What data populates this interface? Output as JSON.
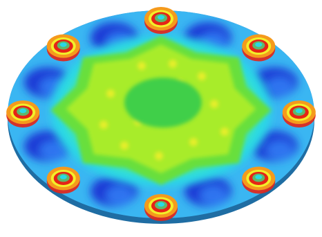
{
  "scene": {
    "subject": "fea-stress-contour-circular-flange-plate",
    "bolt_hole_count": 8,
    "colors": {
      "background": "#ffffff",
      "edge": "#3a8fc4",
      "edge_shadow": "#1f6da3",
      "dark_blue": "#1a3bd6",
      "blue": "#2f74f0",
      "light_blue": "#3ab6f2",
      "cyan": "#2ad8e6",
      "teal_green": "#3ee6b0",
      "green": "#68df3c",
      "yellow_green": "#a8ec2a",
      "center_green": "#3fcf4a",
      "yellow": "#f2ef2a",
      "orange": "#f59a1c",
      "red": "#e52416",
      "hole_inner": "#5fb86a"
    }
  }
}
